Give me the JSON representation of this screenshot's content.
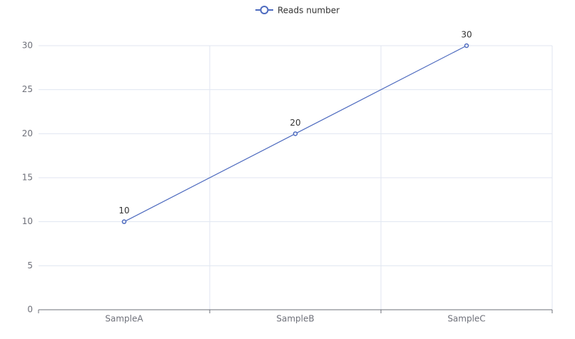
{
  "chart_data": {
    "type": "line",
    "categories": [
      "SampleA",
      "SampleB",
      "SampleC"
    ],
    "series": [
      {
        "name": "Reads number",
        "color": "#4e6bbf",
        "values": [
          10,
          20,
          30
        ]
      }
    ],
    "ylim": [
      0,
      30
    ],
    "yticks": [
      0,
      5,
      10,
      15,
      20,
      25,
      30
    ],
    "grid": true,
    "legend": "top"
  }
}
